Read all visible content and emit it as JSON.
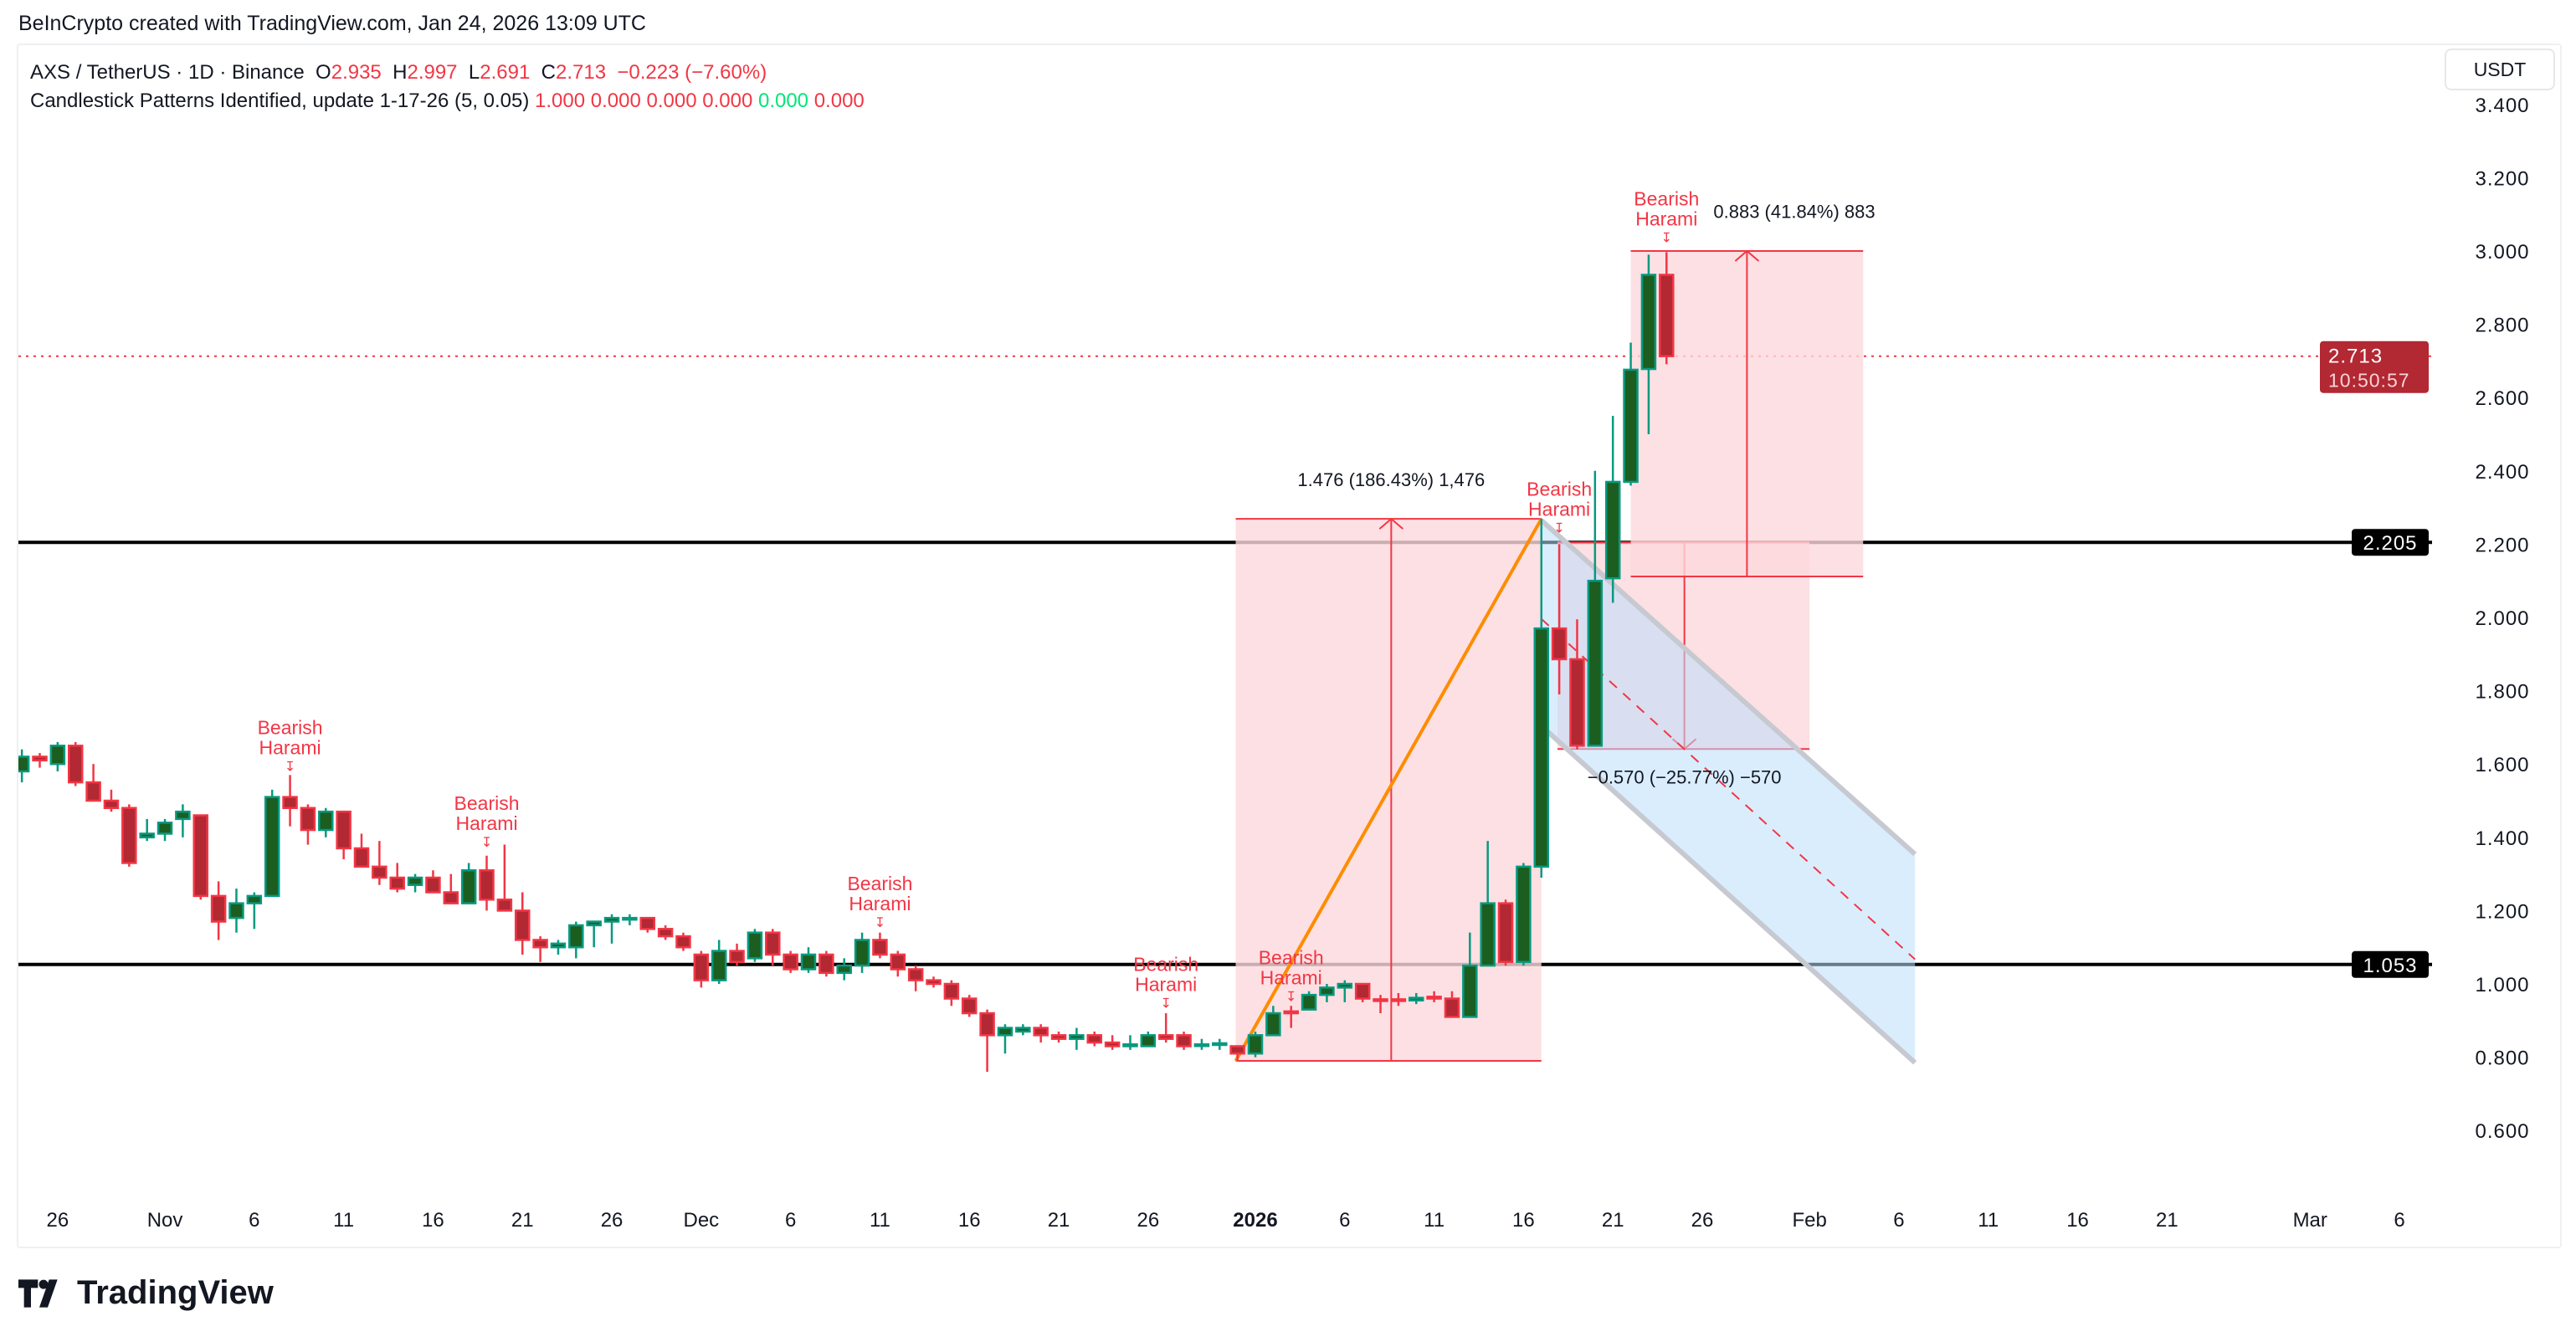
{
  "credit": "BeInCrypto created with TradingView.com, Jan 24, 2026 13:09 UTC",
  "legend": {
    "symbol": "AXS / TetherUS · 1D · Binance",
    "o_label": "O",
    "o": "2.935",
    "h_label": "H",
    "h": "2.997",
    "l_label": "L",
    "l": "2.691",
    "c_label": "C",
    "c": "2.713",
    "change": "−0.223 (−7.60%)",
    "indicator": "Candlestick Patterns Identified, update 1-17-26 (5, 0.05)",
    "indicator_values": [
      "1.000",
      "0.000",
      "0.000",
      "0.000",
      "0.000",
      "0.000"
    ],
    "indicator_colors": [
      "#f23645",
      "#f23645",
      "#f23645",
      "#f23645",
      "#00e676",
      "#f23645"
    ]
  },
  "currency_button": "USDT",
  "logo_text": "TradingView",
  "colors": {
    "up": "#089981",
    "down": "#f23645",
    "up_body": "#1b5e20",
    "down_body": "#b22833",
    "channel": "#bbdefb",
    "box": "#fdd8dc",
    "trend": "#ff8c00"
  },
  "chart_data": {
    "type": "candlestick",
    "title": "",
    "yaxis": {
      "ticks": [
        "0.600",
        "0.800",
        "1.000",
        "1.200",
        "1.400",
        "1.600",
        "1.800",
        "2.000",
        "2.200",
        "2.400",
        "2.600",
        "2.800",
        "3.000",
        "3.200",
        "3.400"
      ],
      "range": [
        0.45,
        3.45
      ],
      "side": "right"
    },
    "xaxis": {
      "ticks": [
        {
          "date": "2025-10-26",
          "label": "26"
        },
        {
          "date": "2025-11-01",
          "label": "Nov"
        },
        {
          "date": "2025-11-06",
          "label": "6"
        },
        {
          "date": "2025-11-11",
          "label": "11"
        },
        {
          "date": "2025-11-16",
          "label": "16"
        },
        {
          "date": "2025-11-21",
          "label": "21"
        },
        {
          "date": "2025-11-26",
          "label": "26"
        },
        {
          "date": "2025-12-01",
          "label": "Dec"
        },
        {
          "date": "2025-12-06",
          "label": "6"
        },
        {
          "date": "2025-12-11",
          "label": "11"
        },
        {
          "date": "2025-12-16",
          "label": "16"
        },
        {
          "date": "2025-12-21",
          "label": "21"
        },
        {
          "date": "2025-12-26",
          "label": "26"
        },
        {
          "date": "2026-01-01",
          "label": "2026",
          "bold": true
        },
        {
          "date": "2026-01-06",
          "label": "6"
        },
        {
          "date": "2026-01-11",
          "label": "11"
        },
        {
          "date": "2026-01-16",
          "label": "16"
        },
        {
          "date": "2026-01-21",
          "label": "21"
        },
        {
          "date": "2026-01-26",
          "label": "26"
        },
        {
          "date": "2026-02-01",
          "label": "Feb"
        },
        {
          "date": "2026-02-06",
          "label": "6"
        },
        {
          "date": "2026-02-11",
          "label": "11"
        },
        {
          "date": "2026-02-16",
          "label": "16"
        },
        {
          "date": "2026-02-21",
          "label": "21"
        },
        {
          "date": "2026-03-01",
          "label": "Mar"
        },
        {
          "date": "2026-03-06",
          "label": "6"
        }
      ]
    },
    "candles_columns": [
      "date",
      "open",
      "high",
      "low",
      "close"
    ],
    "candles": [
      [
        "2025-10-24",
        1.58,
        1.64,
        1.55,
        1.62
      ],
      [
        "2025-10-25",
        1.62,
        1.63,
        1.59,
        1.61
      ],
      [
        "2025-10-26",
        1.6,
        1.66,
        1.58,
        1.65
      ],
      [
        "2025-10-27",
        1.65,
        1.66,
        1.54,
        1.55
      ],
      [
        "2025-10-28",
        1.55,
        1.6,
        1.5,
        1.5
      ],
      [
        "2025-10-29",
        1.5,
        1.53,
        1.47,
        1.48
      ],
      [
        "2025-10-30",
        1.48,
        1.49,
        1.32,
        1.33
      ],
      [
        "2025-10-31",
        1.4,
        1.45,
        1.39,
        1.41
      ],
      [
        "2025-11-01",
        1.41,
        1.45,
        1.39,
        1.44
      ],
      [
        "2025-11-02",
        1.45,
        1.49,
        1.4,
        1.47
      ],
      [
        "2025-11-03",
        1.46,
        1.46,
        1.23,
        1.24
      ],
      [
        "2025-11-04",
        1.24,
        1.28,
        1.12,
        1.17
      ],
      [
        "2025-11-05",
        1.18,
        1.26,
        1.14,
        1.22
      ],
      [
        "2025-11-06",
        1.22,
        1.25,
        1.15,
        1.24
      ],
      [
        "2025-11-07",
        1.24,
        1.53,
        1.24,
        1.51
      ],
      [
        "2025-11-08",
        1.51,
        1.57,
        1.43,
        1.48
      ],
      [
        "2025-11-09",
        1.48,
        1.49,
        1.38,
        1.42
      ],
      [
        "2025-11-10",
        1.42,
        1.48,
        1.4,
        1.47
      ],
      [
        "2025-11-11",
        1.47,
        1.47,
        1.34,
        1.37
      ],
      [
        "2025-11-12",
        1.37,
        1.41,
        1.32,
        1.32
      ],
      [
        "2025-11-13",
        1.32,
        1.39,
        1.27,
        1.29
      ],
      [
        "2025-11-14",
        1.29,
        1.33,
        1.25,
        1.26
      ],
      [
        "2025-11-15",
        1.27,
        1.3,
        1.25,
        1.29
      ],
      [
        "2025-11-16",
        1.29,
        1.31,
        1.25,
        1.25
      ],
      [
        "2025-11-17",
        1.25,
        1.3,
        1.22,
        1.22
      ],
      [
        "2025-11-18",
        1.22,
        1.33,
        1.22,
        1.31
      ],
      [
        "2025-11-19",
        1.31,
        1.35,
        1.2,
        1.23
      ],
      [
        "2025-11-20",
        1.23,
        1.38,
        1.2,
        1.2
      ],
      [
        "2025-11-21",
        1.2,
        1.25,
        1.08,
        1.12
      ],
      [
        "2025-11-22",
        1.12,
        1.13,
        1.06,
        1.1
      ],
      [
        "2025-11-23",
        1.1,
        1.12,
        1.08,
        1.11
      ],
      [
        "2025-11-24",
        1.1,
        1.17,
        1.07,
        1.16
      ],
      [
        "2025-11-25",
        1.16,
        1.17,
        1.1,
        1.17
      ],
      [
        "2025-11-26",
        1.17,
        1.19,
        1.11,
        1.18
      ],
      [
        "2025-11-27",
        1.18,
        1.19,
        1.16,
        1.18
      ],
      [
        "2025-11-28",
        1.18,
        1.18,
        1.14,
        1.15
      ],
      [
        "2025-11-29",
        1.15,
        1.16,
        1.12,
        1.13
      ],
      [
        "2025-11-30",
        1.13,
        1.14,
        1.09,
        1.1
      ],
      [
        "2025-12-01",
        1.08,
        1.09,
        0.99,
        1.01
      ],
      [
        "2025-12-02",
        1.01,
        1.12,
        1.0,
        1.09
      ],
      [
        "2025-12-03",
        1.09,
        1.11,
        1.05,
        1.06
      ],
      [
        "2025-12-04",
        1.07,
        1.15,
        1.06,
        1.14
      ],
      [
        "2025-12-05",
        1.14,
        1.15,
        1.05,
        1.08
      ],
      [
        "2025-12-06",
        1.08,
        1.09,
        1.03,
        1.04
      ],
      [
        "2025-12-07",
        1.04,
        1.1,
        1.03,
        1.08
      ],
      [
        "2025-12-08",
        1.08,
        1.09,
        1.02,
        1.03
      ],
      [
        "2025-12-09",
        1.03,
        1.07,
        1.01,
        1.05
      ],
      [
        "2025-12-10",
        1.05,
        1.14,
        1.03,
        1.12
      ],
      [
        "2025-12-11",
        1.12,
        1.14,
        1.07,
        1.08
      ],
      [
        "2025-12-12",
        1.08,
        1.09,
        1.02,
        1.04
      ],
      [
        "2025-12-13",
        1.04,
        1.05,
        0.98,
        1.01
      ],
      [
        "2025-12-14",
        1.01,
        1.02,
        0.99,
        1.0
      ],
      [
        "2025-12-15",
        1.0,
        1.01,
        0.94,
        0.96
      ],
      [
        "2025-12-16",
        0.96,
        0.97,
        0.91,
        0.92
      ],
      [
        "2025-12-17",
        0.92,
        0.93,
        0.76,
        0.86
      ],
      [
        "2025-12-18",
        0.86,
        0.89,
        0.81,
        0.88
      ],
      [
        "2025-12-19",
        0.87,
        0.89,
        0.86,
        0.88
      ],
      [
        "2025-12-20",
        0.88,
        0.89,
        0.84,
        0.86
      ],
      [
        "2025-12-21",
        0.86,
        0.87,
        0.84,
        0.85
      ],
      [
        "2025-12-22",
        0.85,
        0.88,
        0.82,
        0.86
      ],
      [
        "2025-12-23",
        0.86,
        0.87,
        0.83,
        0.84
      ],
      [
        "2025-12-24",
        0.84,
        0.86,
        0.82,
        0.83
      ],
      [
        "2025-12-25",
        0.83,
        0.86,
        0.82,
        0.835
      ],
      [
        "2025-12-26",
        0.83,
        0.87,
        0.83,
        0.86
      ],
      [
        "2025-12-27",
        0.86,
        0.92,
        0.84,
        0.85
      ],
      [
        "2025-12-28",
        0.86,
        0.87,
        0.82,
        0.83
      ],
      [
        "2025-12-29",
        0.833,
        0.85,
        0.82,
        0.835
      ],
      [
        "2025-12-30",
        0.835,
        0.85,
        0.82,
        0.838
      ],
      [
        "2025-12-31",
        0.83,
        0.83,
        0.79,
        0.81
      ],
      [
        "2026-01-01",
        0.81,
        0.87,
        0.8,
        0.86
      ],
      [
        "2026-01-02",
        0.86,
        0.94,
        0.86,
        0.92
      ],
      [
        "2026-01-03",
        0.925,
        0.94,
        0.88,
        0.92
      ],
      [
        "2026-01-04",
        0.93,
        0.98,
        0.93,
        0.97
      ],
      [
        "2026-01-05",
        0.97,
        1.0,
        0.95,
        0.99
      ],
      [
        "2026-01-06",
        0.99,
        1.01,
        0.95,
        1.0
      ],
      [
        "2026-01-07",
        1.0,
        1.0,
        0.95,
        0.96
      ],
      [
        "2026-01-08",
        0.958,
        0.97,
        0.92,
        0.955
      ],
      [
        "2026-01-09",
        0.958,
        0.975,
        0.94,
        0.955
      ],
      [
        "2026-01-10",
        0.955,
        0.975,
        0.945,
        0.962
      ],
      [
        "2026-01-11",
        0.965,
        0.98,
        0.95,
        0.96
      ],
      [
        "2026-01-12",
        0.96,
        0.98,
        0.91,
        0.91
      ],
      [
        "2026-01-13",
        0.91,
        1.14,
        0.91,
        1.05
      ],
      [
        "2026-01-14",
        1.05,
        1.39,
        1.05,
        1.22
      ],
      [
        "2026-01-15",
        1.22,
        1.23,
        1.05,
        1.06
      ],
      [
        "2026-01-16",
        1.06,
        1.33,
        1.05,
        1.32
      ],
      [
        "2026-01-17",
        1.32,
        2.27,
        1.29,
        1.97
      ],
      [
        "2026-01-18",
        1.97,
        2.2,
        1.79,
        1.886
      ],
      [
        "2026-01-19",
        1.886,
        1.995,
        1.64,
        1.65
      ],
      [
        "2026-01-20",
        1.65,
        2.4,
        1.65,
        2.1
      ],
      [
        "2026-01-21",
        2.107,
        2.55,
        2.04,
        2.37
      ],
      [
        "2026-01-22",
        2.37,
        2.75,
        2.36,
        2.676
      ],
      [
        "2026-01-23",
        2.678,
        2.99,
        2.5,
        2.935
      ],
      [
        "2026-01-24",
        2.935,
        2.997,
        2.691,
        2.713
      ]
    ],
    "horizontal_levels": [
      {
        "price": 2.205,
        "label": "2.205",
        "color": "#000000"
      },
      {
        "price": 1.053,
        "label": "1.053",
        "color": "#000000"
      }
    ],
    "last_price": {
      "label": "2.713",
      "price": 2.713,
      "countdown": "10:50:57",
      "color": "#b22833"
    },
    "patterns": [
      {
        "date": "2025-11-08",
        "line1": "Bearish",
        "line2": "Harami",
        "price": 1.7
      },
      {
        "date": "2025-11-19",
        "line1": "Bearish",
        "line2": "Harami",
        "price": 1.493
      },
      {
        "date": "2025-12-11",
        "line1": "Bearish",
        "line2": "Harami",
        "price": 1.274
      },
      {
        "date": "2025-12-27",
        "line1": "Bearish",
        "line2": "Harami",
        "price": 1.054
      },
      {
        "date": "2026-01-03",
        "line1": "Bearish",
        "line2": "Harami",
        "price": 1.072
      },
      {
        "date": "2026-01-18",
        "line1": "Bearish",
        "line2": "Harami",
        "price": 2.35
      },
      {
        "date": "2026-01-24",
        "line1": "Bearish",
        "line2": "Harami",
        "price": 3.143
      }
    ],
    "measurements": [
      {
        "label": "1.476 (186.43%) 1,476",
        "from_price": 0.79,
        "to_price": 2.269,
        "start": "2025-12-31",
        "end": "2026-01-17"
      },
      {
        "label": "−0.570 (−25.77%) −570",
        "from_price": 2.205,
        "to_price": 1.641,
        "start": "2026-01-18",
        "end": "2026-02-01"
      },
      {
        "label": "0.883 (41.84%) 883",
        "from_price": 2.112,
        "to_price": 3.0,
        "start": "2026-01-22",
        "end": "2026-02-04"
      }
    ]
  }
}
